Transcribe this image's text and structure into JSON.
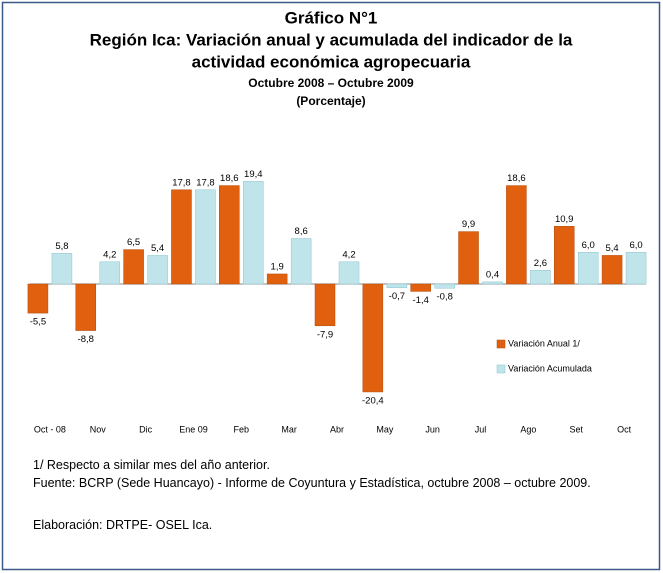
{
  "chart_data": {
    "type": "bar",
    "title": [
      "Gráfico N°1",
      "Región Ica: Variación anual y acumulada del indicador de la",
      "actividad económica agropecuaria"
    ],
    "subtitle": [
      "Octubre 2008 – Octubre 2009",
      "(Porcentaje)"
    ],
    "categories": [
      "Oct - 08",
      "Nov",
      "Dic",
      "Ene 09",
      "Feb",
      "Mar",
      "Abr",
      "May",
      "Jun",
      "Jul",
      "Ago",
      "Set",
      "Oct"
    ],
    "series": [
      {
        "name": "Variación Anual 1/",
        "color": "#e0600f",
        "values": [
          -5.5,
          -8.8,
          6.5,
          17.8,
          18.6,
          1.9,
          -7.9,
          -20.4,
          -1.4,
          9.9,
          18.6,
          10.9,
          5.4
        ],
        "value_labels": [
          "-5,5",
          "-8,8",
          "6,5",
          "17,8",
          "18,6",
          "1,9",
          "-7,9",
          "-20,4",
          "-1,4",
          "9,9",
          "18,6",
          "10,9",
          "5,4"
        ]
      },
      {
        "name": "Variación Acumulada",
        "color": "#bfe4ea",
        "values": [
          5.8,
          4.2,
          5.4,
          17.8,
          19.4,
          8.6,
          4.2,
          -0.7,
          -0.8,
          0.4,
          2.6,
          6.0,
          6.0
        ],
        "value_labels": [
          "5,8",
          "4,2",
          "5,4",
          "17,8",
          "19,4",
          "8,6",
          "4,2",
          "-0,7",
          "-0,8",
          "0,4",
          "2,6",
          "6,0",
          "6,0"
        ]
      }
    ],
    "ylim": [
      -24,
      24
    ],
    "legend": "right",
    "notes": [
      "1/ Respecto a similar mes del año anterior.",
      "Fuente: BCRP (Sede Huancayo) - Informe de Coyuntura y Estadística, octubre 2008 – octubre 2009.",
      "Elaboración: DRTPE- OSEL Ica."
    ]
  }
}
